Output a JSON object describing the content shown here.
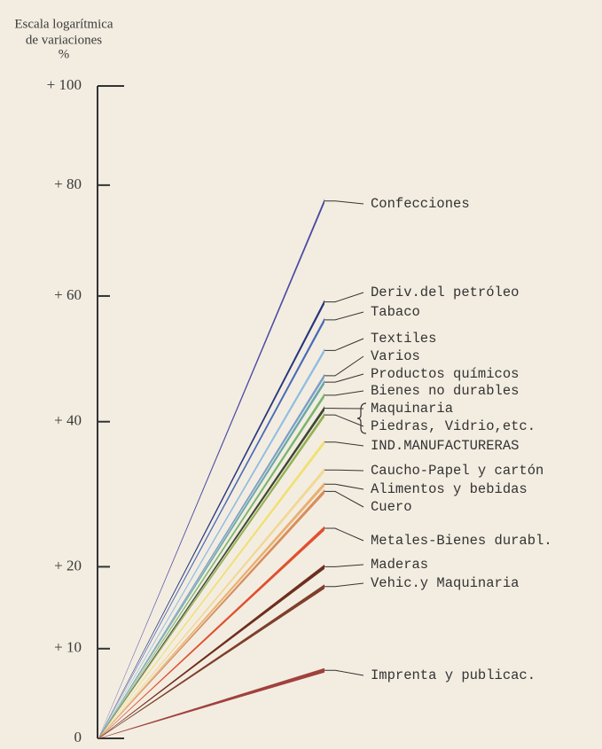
{
  "chart_data": {
    "type": "slope",
    "ytitle": [
      "Escala logarítmica",
      "de variaciones",
      "%"
    ],
    "yscale": "log",
    "ylim": [
      0,
      100
    ],
    "yticks": [
      0,
      {
        "value": 10,
        "label": "+ 10"
      },
      {
        "value": 20,
        "label": "+ 20"
      },
      {
        "value": 40,
        "label": "+ 40"
      },
      {
        "value": 60,
        "label": "+ 60"
      },
      {
        "value": 80,
        "label": "+ 80"
      },
      {
        "value": 100,
        "label": "+ 100"
      }
    ],
    "series": [
      {
        "name": "Confecciones",
        "color": "#4b4aa2",
        "value": 77
      },
      {
        "name": "Deriv.del petróleo",
        "color": "#27367e",
        "value": 59
      },
      {
        "name": "Tabaco",
        "color": "#4a6bb8",
        "value": 56
      },
      {
        "name": "Textiles",
        "color": "#8fbde3",
        "value": 51
      },
      {
        "name": "Varios",
        "color": "#7c9fc9",
        "value": 47
      },
      {
        "name": "Productos químicos",
        "color": "#6aa8a6",
        "value": 46
      },
      {
        "name": "Bienes no durables",
        "color": "#79b56f",
        "value": 44
      },
      {
        "name": "Maquinaria",
        "color": "#3f4736",
        "value": 42
      },
      {
        "name": "Piedras, Vidrio,etc.",
        "color": "#95b153",
        "value": 41
      },
      {
        "name": "IND.MANUFACTURERAS",
        "color": "#efe072",
        "value": 37
      },
      {
        "name": "Caucho-Papel y cartón",
        "color": "#f1d895",
        "value": 33
      },
      {
        "name": "Alimentos y bebidas",
        "color": "#e8b172",
        "value": 31
      },
      {
        "name": "Cuero",
        "color": "#d88e5d",
        "value": 30
      },
      {
        "name": "Metales-Bienes durabl.",
        "color": "#e0502f",
        "value": 25
      },
      {
        "name": "Maderas",
        "color": "#6e2e1e",
        "value": 20
      },
      {
        "name": "Vehic.y Maquinaria",
        "color": "#7f3f2c",
        "value": 17.5
      },
      {
        "name": "Imprenta y publicac.",
        "color": "#a0413e",
        "value": 7.5
      }
    ]
  }
}
